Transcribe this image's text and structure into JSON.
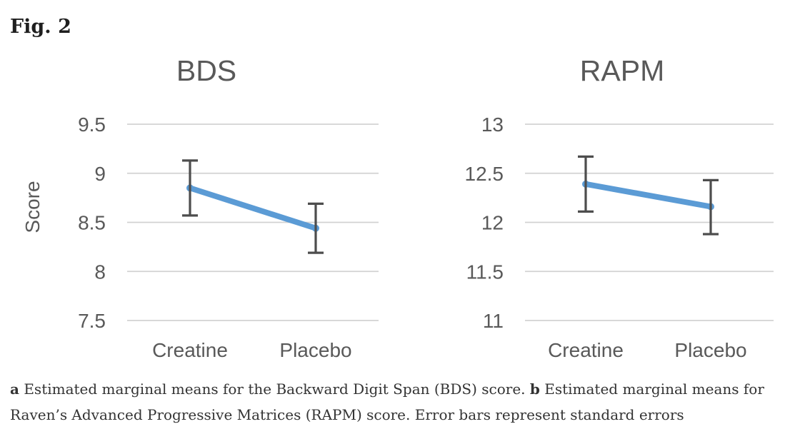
{
  "figure_label": "Fig. 2",
  "colors": {
    "line": "#5B9BD5",
    "error_bar": "#4D4D4D",
    "gridline": "#D2D2D2",
    "chart_text": "#595959",
    "figure_label_text": "#1F1F1F",
    "caption_text": "#333333"
  },
  "chart_data": [
    {
      "type": "line",
      "title": "BDS",
      "ylabel": "Score",
      "xlabel": "",
      "categories": [
        "Creatine",
        "Placebo"
      ],
      "series": [
        {
          "name": "Estimated marginal mean",
          "values": [
            8.85,
            8.44
          ]
        }
      ],
      "error_bars": {
        "upper": [
          9.13,
          8.69
        ],
        "lower": [
          8.57,
          8.19
        ]
      },
      "yticks": [
        "9.5",
        "9",
        "8.5",
        "8",
        "7.5"
      ],
      "ylim": [
        7.5,
        9.5
      ],
      "grid": true,
      "legend": "none"
    },
    {
      "type": "line",
      "title": "RAPM",
      "ylabel": "",
      "xlabel": "",
      "categories": [
        "Creatine",
        "Placebo"
      ],
      "series": [
        {
          "name": "Estimated marginal mean",
          "values": [
            12.39,
            12.16
          ]
        }
      ],
      "error_bars": {
        "upper": [
          12.67,
          12.43
        ],
        "lower": [
          12.11,
          11.88
        ]
      },
      "yticks": [
        "13",
        "12.5",
        "12",
        "11.5",
        "11"
      ],
      "ylim": [
        11,
        13
      ],
      "grid": true,
      "legend": "none"
    }
  ],
  "caption": {
    "a_label": "a",
    "a_text": "Estimated marginal means for the Backward Digit Span (BDS) score.",
    "b_label": "b",
    "b_text": "Estimated marginal means for Raven’s Advanced Progressive Matrices (RAPM) score. Error bars represent standard errors"
  }
}
